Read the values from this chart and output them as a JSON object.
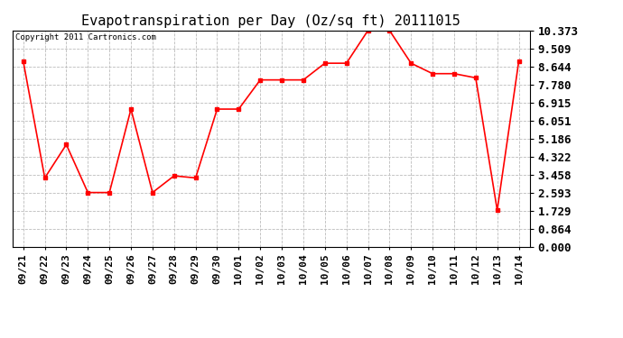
{
  "title": "Evapotranspiration per Day (Oz/sq ft) 20111015",
  "copyright": "Copyright 2011 Cartronics.com",
  "x_labels": [
    "09/21",
    "09/22",
    "09/23",
    "09/24",
    "09/25",
    "09/26",
    "09/27",
    "09/28",
    "09/29",
    "09/30",
    "10/01",
    "10/02",
    "10/03",
    "10/04",
    "10/05",
    "10/06",
    "10/07",
    "10/08",
    "10/09",
    "10/10",
    "10/11",
    "10/12",
    "10/13",
    "10/14"
  ],
  "y_values": [
    8.9,
    3.3,
    4.9,
    2.6,
    2.6,
    6.6,
    2.6,
    3.4,
    3.3,
    6.6,
    6.6,
    8.0,
    8.0,
    8.0,
    8.8,
    8.8,
    10.37,
    10.37,
    8.8,
    8.3,
    8.3,
    8.1,
    1.75,
    8.9
  ],
  "ylim": [
    0,
    10.373
  ],
  "yticks": [
    0.0,
    0.864,
    1.729,
    2.593,
    3.458,
    4.322,
    5.186,
    6.051,
    6.915,
    7.78,
    8.644,
    9.509,
    10.373
  ],
  "line_color": "red",
  "marker": "s",
  "marker_size": 3,
  "bg_color": "#ffffff",
  "plot_bg": "#ffffff",
  "grid_color": "#bbbbbb",
  "title_fontsize": 11,
  "copyright_fontsize": 6.5,
  "tick_fontsize": 8,
  "ytick_fontsize": 9
}
